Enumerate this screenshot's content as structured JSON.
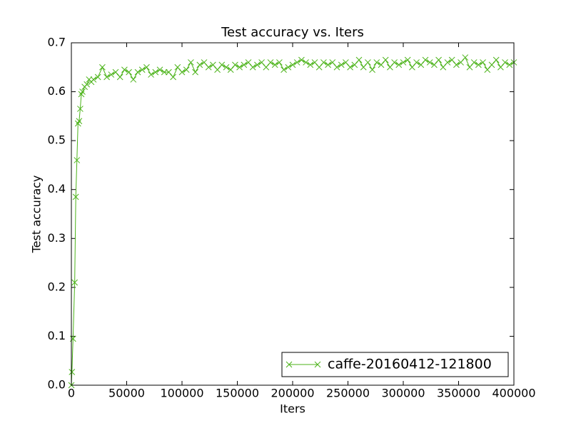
{
  "chart_data": {
    "type": "line",
    "title": "Test accuracy  vs. Iters",
    "x_label": "Iters",
    "y_label": "Test accuracy",
    "xlim": [
      0,
      400000
    ],
    "ylim": [
      0,
      0.7
    ],
    "xticks": [
      0,
      50000,
      100000,
      150000,
      200000,
      250000,
      300000,
      350000,
      400000
    ],
    "yticks": [
      {
        "value": 0,
        "label": "0.0"
      },
      0.1,
      0.2,
      0.3,
      0.4,
      0.5,
      0.6,
      0.7
    ],
    "legend_loc": "lower right",
    "x": [
      0,
      500,
      1500,
      3000,
      4000,
      5000,
      6000,
      7000,
      8000,
      9000,
      10000,
      12000,
      14000,
      16000,
      18000,
      20000,
      24000,
      28000,
      32000,
      36000,
      40000,
      44000,
      48000,
      52000,
      56000,
      60000,
      64000,
      68000,
      72000,
      76000,
      80000,
      84000,
      88000,
      92000,
      96000,
      100000,
      104000,
      108000,
      112000,
      116000,
      120000,
      124000,
      128000,
      132000,
      136000,
      140000,
      144000,
      148000,
      152000,
      156000,
      160000,
      164000,
      168000,
      172000,
      176000,
      180000,
      184000,
      188000,
      192000,
      196000,
      200000,
      204000,
      208000,
      212000,
      216000,
      220000,
      224000,
      228000,
      232000,
      236000,
      240000,
      244000,
      248000,
      252000,
      256000,
      260000,
      264000,
      268000,
      272000,
      276000,
      280000,
      284000,
      288000,
      292000,
      296000,
      300000,
      304000,
      308000,
      312000,
      316000,
      320000,
      324000,
      328000,
      332000,
      336000,
      340000,
      344000,
      348000,
      352000,
      356000,
      360000,
      364000,
      368000,
      372000,
      376000,
      380000,
      384000,
      388000,
      392000,
      396000,
      400000
    ],
    "series": [
      {
        "name": "caffe-20160412-121800",
        "color": "#4cb31a",
        "values": [
          0,
          0.027,
          0.095,
          0.21,
          0.385,
          0.46,
          0.535,
          0.54,
          0.565,
          0.595,
          0.6,
          0.61,
          0.615,
          0.625,
          0.62,
          0.625,
          0.63,
          0.65,
          0.63,
          0.635,
          0.64,
          0.63,
          0.645,
          0.64,
          0.625,
          0.64,
          0.645,
          0.65,
          0.635,
          0.64,
          0.645,
          0.64,
          0.64,
          0.63,
          0.65,
          0.64,
          0.645,
          0.66,
          0.64,
          0.655,
          0.66,
          0.65,
          0.655,
          0.645,
          0.655,
          0.65,
          0.645,
          0.655,
          0.65,
          0.655,
          0.66,
          0.65,
          0.655,
          0.66,
          0.65,
          0.66,
          0.655,
          0.66,
          0.645,
          0.65,
          0.655,
          0.66,
          0.665,
          0.66,
          0.655,
          0.66,
          0.65,
          0.66,
          0.655,
          0.66,
          0.65,
          0.655,
          0.66,
          0.65,
          0.655,
          0.665,
          0.65,
          0.66,
          0.645,
          0.66,
          0.655,
          0.665,
          0.65,
          0.66,
          0.655,
          0.66,
          0.665,
          0.65,
          0.66,
          0.655,
          0.665,
          0.66,
          0.655,
          0.665,
          0.65,
          0.66,
          0.665,
          0.655,
          0.66,
          0.67,
          0.65,
          0.66,
          0.655,
          0.66,
          0.645,
          0.655,
          0.665,
          0.65,
          0.66,
          0.655,
          0.66
        ]
      }
    ]
  }
}
